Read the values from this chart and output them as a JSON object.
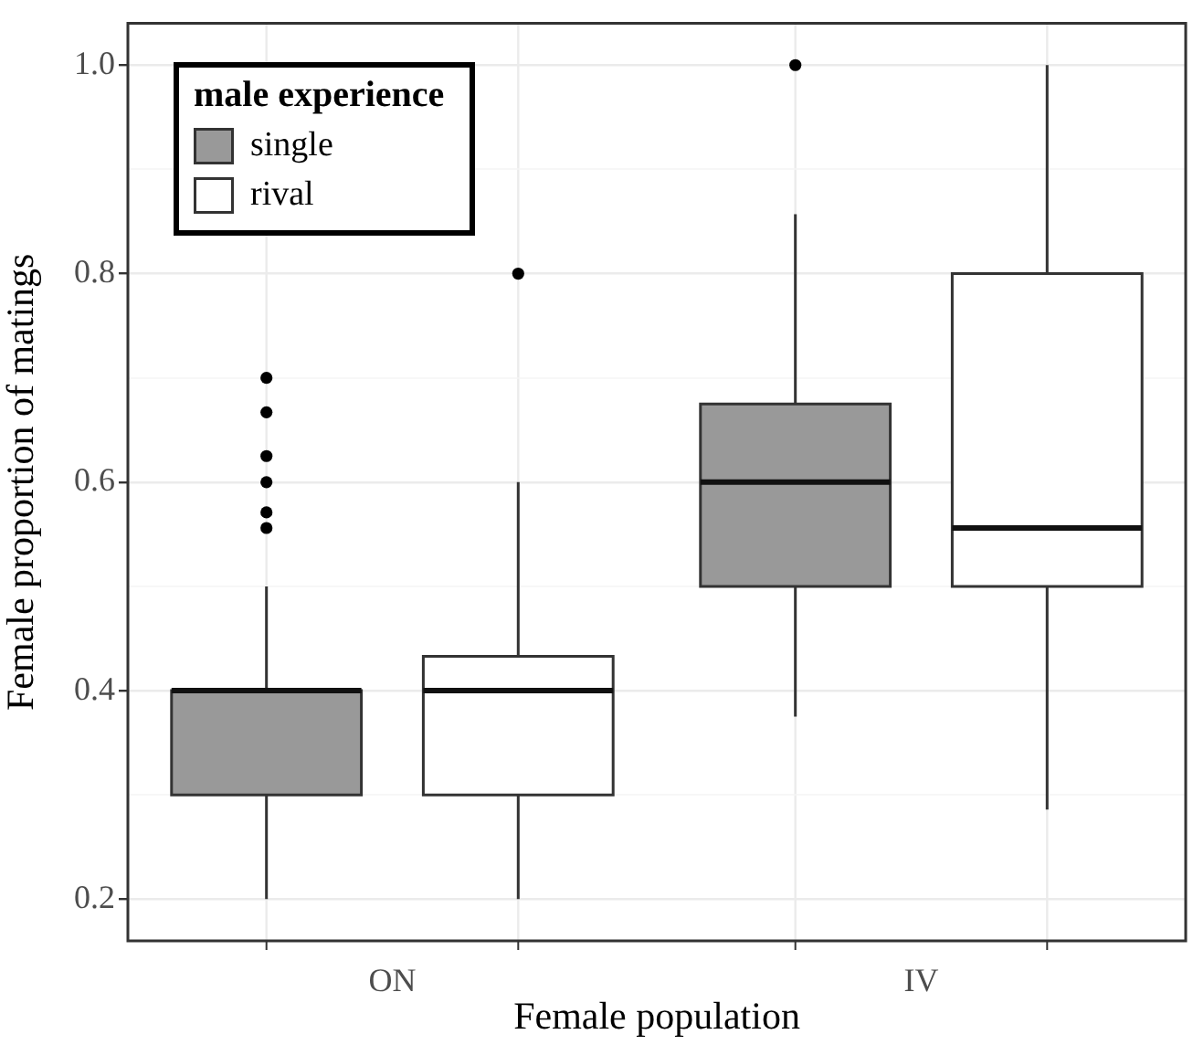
{
  "chart_data": {
    "type": "box",
    "categories": [
      "ON",
      "IV"
    ],
    "xlabel": "Female population",
    "ylabel": "Female proportion of matings",
    "legend_title": "male experience",
    "legend": "top left",
    "grid": true,
    "ylim": [
      0.16,
      1.04
    ],
    "yticks": [
      0.2,
      {
        "value": 0.3,
        "label": null
      },
      0.4,
      {
        "value": 0.5,
        "label": null
      },
      0.6,
      {
        "value": 0.7,
        "label": null
      },
      0.8,
      {
        "value": 0.9,
        "label": null
      },
      {
        "value": 1,
        "label": "1.0"
      }
    ],
    "series": [
      {
        "name": "single",
        "color": "#999999",
        "boxes": [
          {
            "low": 0.2,
            "q1": 0.3,
            "median": 0.4,
            "q3": 0.4,
            "high": 0.5,
            "outliers": [
              0.7,
              0.667,
              0.625,
              0.6,
              0.571,
              0.556
            ]
          },
          {
            "low": 0.375,
            "q1": 0.5,
            "median": 0.6,
            "q3": 0.675,
            "high": 0.857,
            "outliers": [
              1
            ]
          }
        ]
      },
      {
        "name": "rival",
        "color": "#ffffff",
        "boxes": [
          {
            "low": 0.2,
            "q1": 0.3,
            "median": 0.4,
            "q3": 0.433,
            "high": 0.6,
            "outliers": [
              0.8
            ]
          },
          {
            "low": 0.286,
            "q1": 0.5,
            "median": 0.556,
            "q3": 0.8,
            "high": 1
          }
        ]
      }
    ]
  }
}
